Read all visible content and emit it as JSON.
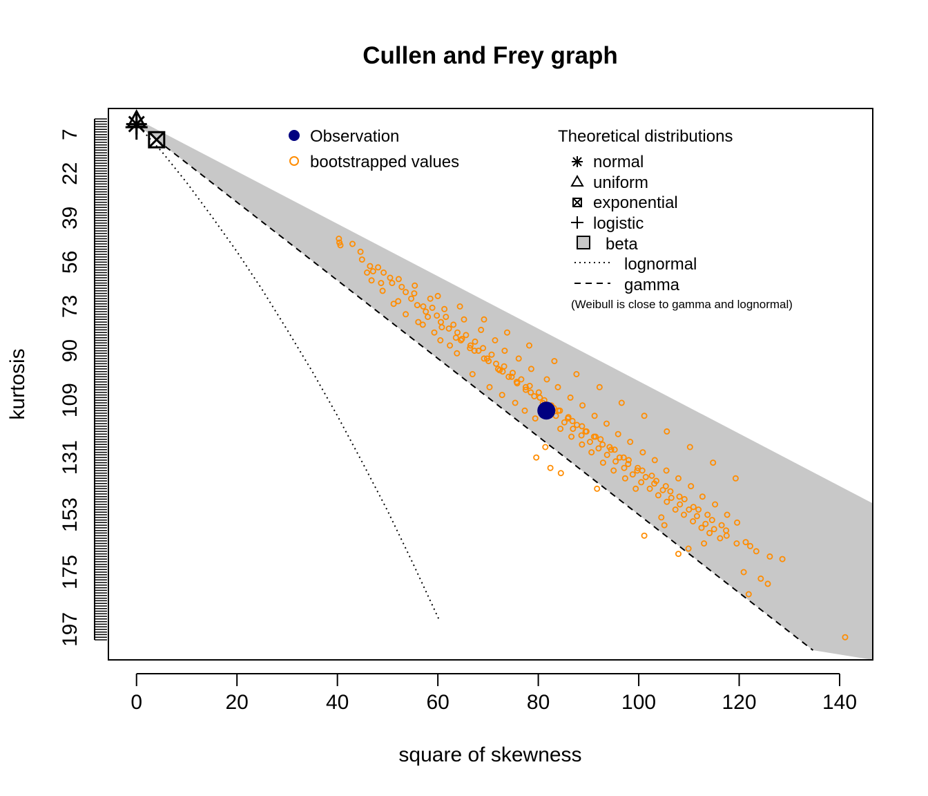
{
  "chart_data": {
    "type": "scatter",
    "title": "Cullen and Frey graph",
    "xlabel": "square of skewness",
    "ylabel": "kurtosis",
    "xlim": [
      -5.6,
      146.6
    ],
    "ylim": [
      208.7,
      -3
    ],
    "y_axis_inverted": true,
    "x_ticks": [
      0,
      20,
      40,
      60,
      80,
      100,
      120,
      140
    ],
    "y_ticks": [
      7,
      22,
      39,
      56,
      73,
      90,
      109,
      131,
      153,
      175,
      197
    ],
    "observation": {
      "x": 81.6,
      "y": 113
    },
    "theoretical_points": {
      "normal": {
        "x": 0,
        "y": 3
      },
      "uniform": {
        "x": 0,
        "y": 1.8
      },
      "exponential": {
        "x": 4,
        "y": 9
      },
      "logistic": {
        "x": 0,
        "y": 4.2
      }
    },
    "beta_region": {
      "upper_boundary": [
        [
          0,
          1
        ],
        [
          146.6,
          148.6
        ]
      ],
      "lower_boundary": [
        [
          0,
          3
        ],
        [
          134.7,
          205
        ]
      ]
    },
    "lognormal_line": [
      [
        0,
        3
      ],
      [
        5,
        13.5
      ],
      [
        10,
        25.5
      ],
      [
        15,
        38.5
      ],
      [
        20,
        52
      ],
      [
        25,
        66.5
      ],
      [
        30,
        82
      ],
      [
        35,
        98
      ],
      [
        40,
        115
      ],
      [
        45,
        133
      ],
      [
        50,
        151.5
      ],
      [
        55,
        171.5
      ],
      [
        60.3,
        193.5
      ]
    ],
    "gamma_line": [
      [
        4,
        9
      ],
      [
        134.7,
        205
      ]
    ],
    "bootstrap_samples": [
      [
        40.3,
        47
      ],
      [
        40.4,
        48.5
      ],
      [
        40.6,
        49.5
      ],
      [
        43.0,
        49
      ],
      [
        44.6,
        52
      ],
      [
        44.9,
        55
      ],
      [
        46.5,
        57.5
      ],
      [
        47.1,
        59.5
      ],
      [
        48.1,
        58
      ],
      [
        49.2,
        60
      ],
      [
        50.5,
        62
      ],
      [
        50.9,
        64
      ],
      [
        52.2,
        62.5
      ],
      [
        52.8,
        65.5
      ],
      [
        53.6,
        67.5
      ],
      [
        54.7,
        70
      ],
      [
        55.3,
        68
      ],
      [
        55.9,
        72.5
      ],
      [
        57.1,
        73
      ],
      [
        57.6,
        75
      ],
      [
        58.9,
        73.5
      ],
      [
        59.8,
        76.5
      ],
      [
        60.6,
        79
      ],
      [
        61.6,
        77
      ],
      [
        62.2,
        81.5
      ],
      [
        63.1,
        80
      ],
      [
        63.9,
        83
      ],
      [
        64.8,
        85.5
      ],
      [
        65.6,
        84
      ],
      [
        66.5,
        88
      ],
      [
        67.4,
        86.5
      ],
      [
        68.1,
        90
      ],
      [
        69.0,
        89
      ],
      [
        69.8,
        93
      ],
      [
        70.7,
        91.5
      ],
      [
        71.6,
        95
      ],
      [
        72.3,
        97.5
      ],
      [
        73.2,
        96
      ],
      [
        74.1,
        100
      ],
      [
        74.9,
        98.5
      ],
      [
        75.8,
        102.5
      ],
      [
        76.6,
        101
      ],
      [
        77.5,
        105
      ],
      [
        78.3,
        103.5
      ],
      [
        79.2,
        107.5
      ],
      [
        80.1,
        106
      ],
      [
        80.9,
        110
      ],
      [
        82.6,
        111
      ],
      [
        83.5,
        115
      ],
      [
        84.3,
        113
      ],
      [
        85.2,
        117.5
      ],
      [
        86.0,
        115.5
      ],
      [
        86.9,
        120
      ],
      [
        87.7,
        118.5
      ],
      [
        88.6,
        122.5
      ],
      [
        89.4,
        121
      ],
      [
        90.3,
        125
      ],
      [
        91.1,
        123
      ],
      [
        92.0,
        127.5
      ],
      [
        92.8,
        126
      ],
      [
        93.7,
        130
      ],
      [
        94.5,
        128
      ],
      [
        95.4,
        132.5
      ],
      [
        96.2,
        131
      ],
      [
        97.1,
        135
      ],
      [
        97.9,
        133.5
      ],
      [
        98.8,
        137.5
      ],
      [
        99.7,
        136
      ],
      [
        100.5,
        140.5
      ],
      [
        101.4,
        138.5
      ],
      [
        102.2,
        143
      ],
      [
        103.1,
        141
      ],
      [
        103.9,
        145.5
      ],
      [
        104.8,
        143.5
      ],
      [
        105.6,
        148
      ],
      [
        106.5,
        146.5
      ],
      [
        107.3,
        151
      ],
      [
        108.2,
        149
      ],
      [
        109.0,
        153
      ],
      [
        110.0,
        151
      ],
      [
        110.8,
        155.5
      ],
      [
        111.6,
        153.5
      ],
      [
        112.5,
        158
      ],
      [
        113.3,
        156.5
      ],
      [
        114.1,
        160
      ],
      [
        115.0,
        158.5
      ],
      [
        116.2,
        162
      ],
      [
        117.5,
        161
      ],
      [
        119.5,
        164
      ],
      [
        121.3,
        163.5
      ],
      [
        122.2,
        165
      ],
      [
        123.4,
        167
      ],
      [
        126.1,
        169
      ],
      [
        128.6,
        170
      ],
      [
        120.9,
        175
      ],
      [
        124.3,
        177.5
      ],
      [
        125.7,
        179.5
      ],
      [
        121.9,
        183.5
      ],
      [
        141.1,
        200
      ],
      [
        101.1,
        161
      ],
      [
        107.9,
        168
      ],
      [
        109.9,
        166
      ],
      [
        113.0,
        164
      ],
      [
        104.5,
        154
      ],
      [
        105.1,
        157
      ],
      [
        91.7,
        143
      ],
      [
        84.5,
        137
      ],
      [
        82.4,
        135
      ],
      [
        79.6,
        131
      ],
      [
        81.4,
        127
      ],
      [
        63.8,
        91
      ],
      [
        62.4,
        88
      ],
      [
        59.3,
        83
      ],
      [
        57.0,
        80
      ],
      [
        53.6,
        76
      ],
      [
        51.2,
        72
      ],
      [
        49.0,
        67
      ],
      [
        46.8,
        63
      ],
      [
        58.5,
        70
      ],
      [
        61.3,
        74
      ],
      [
        65.2,
        78
      ],
      [
        68.6,
        82
      ],
      [
        71.4,
        86
      ],
      [
        73.3,
        90
      ],
      [
        76.1,
        93
      ],
      [
        78.6,
        97
      ],
      [
        81.7,
        101
      ],
      [
        83.9,
        104
      ],
      [
        86.4,
        108
      ],
      [
        88.8,
        111
      ],
      [
        91.2,
        115
      ],
      [
        93.6,
        118
      ],
      [
        95.9,
        122
      ],
      [
        98.3,
        125
      ],
      [
        100.8,
        129
      ],
      [
        103.2,
        132
      ],
      [
        105.5,
        136
      ],
      [
        107.9,
        139
      ],
      [
        110.4,
        142
      ],
      [
        112.7,
        146
      ],
      [
        115.2,
        149
      ],
      [
        117.6,
        153
      ],
      [
        119.6,
        156
      ],
      [
        75.4,
        110
      ],
      [
        77.3,
        113
      ],
      [
        79.4,
        116
      ],
      [
        84.4,
        120
      ],
      [
        86.6,
        123
      ],
      [
        88.7,
        126
      ],
      [
        90.6,
        129
      ],
      [
        92.9,
        133
      ],
      [
        95.0,
        136
      ],
      [
        97.3,
        139
      ],
      [
        99.4,
        143
      ],
      [
        66.9,
        99
      ],
      [
        70.3,
        104
      ],
      [
        72.8,
        107
      ],
      [
        60.5,
        86
      ],
      [
        56.1,
        79
      ],
      [
        52.1,
        71
      ],
      [
        48.7,
        64
      ],
      [
        45.9,
        60
      ],
      [
        55.4,
        65
      ],
      [
        60.0,
        69
      ],
      [
        64.4,
        73
      ],
      [
        69.2,
        78
      ],
      [
        73.8,
        83
      ],
      [
        78.2,
        88
      ],
      [
        83.2,
        94
      ],
      [
        87.6,
        99
      ],
      [
        92.2,
        104
      ],
      [
        96.6,
        110
      ],
      [
        101.1,
        115
      ],
      [
        105.6,
        121
      ],
      [
        110.2,
        127
      ],
      [
        114.8,
        133
      ],
      [
        119.3,
        139
      ],
      [
        64.6,
        86
      ],
      [
        67.3,
        90
      ],
      [
        70.1,
        94
      ],
      [
        72.9,
        98
      ],
      [
        75.7,
        102
      ],
      [
        78.5,
        106
      ],
      [
        81.2,
        109
      ],
      [
        84.0,
        113
      ],
      [
        86.8,
        117
      ],
      [
        89.6,
        121
      ],
      [
        92.4,
        124
      ],
      [
        95.2,
        128
      ],
      [
        98.0,
        132
      ],
      [
        100.7,
        136
      ],
      [
        103.5,
        140
      ],
      [
        106.3,
        144
      ],
      [
        109.1,
        147
      ],
      [
        111.9,
        151
      ],
      [
        114.6,
        155
      ],
      [
        117.4,
        159
      ],
      [
        58.0,
        77
      ],
      [
        60.8,
        81
      ],
      [
        63.6,
        85
      ],
      [
        66.4,
        89
      ],
      [
        69.2,
        93
      ],
      [
        72.0,
        97
      ],
      [
        74.7,
        100
      ],
      [
        77.5,
        104
      ],
      [
        80.3,
        108
      ],
      [
        83.1,
        112
      ],
      [
        85.9,
        116
      ],
      [
        88.7,
        119
      ],
      [
        91.4,
        123
      ],
      [
        94.2,
        127
      ],
      [
        97.0,
        131
      ],
      [
        99.8,
        135
      ],
      [
        102.6,
        138
      ],
      [
        105.4,
        142
      ],
      [
        108.1,
        146
      ],
      [
        110.9,
        150
      ],
      [
        113.7,
        153
      ],
      [
        116.5,
        157
      ]
    ]
  },
  "legend_left": [
    {
      "symbol": "filled-circle",
      "color": "#000080",
      "label": "Observation"
    },
    {
      "symbol": "open-circle",
      "color": "#FF8C00",
      "label": "bootstrapped values"
    }
  ],
  "legend_right": {
    "title": "Theoretical distributions",
    "items": [
      {
        "symbol": "asterisk",
        "label": "normal"
      },
      {
        "symbol": "triangle",
        "label": "uniform"
      },
      {
        "symbol": "boxed-x",
        "label": "exponential"
      },
      {
        "symbol": "plus",
        "label": "logistic"
      },
      {
        "symbol": "gray-box",
        "label": "beta"
      },
      {
        "symbol": "dotted-line",
        "label": "lognormal"
      },
      {
        "symbol": "dashed-line",
        "label": "gamma"
      }
    ],
    "note": "(Weibull is close to gamma and lognormal)"
  },
  "colors": {
    "observation": "#000080",
    "bootstrap": "#FF8C00",
    "beta_region": "#C8C8C8",
    "axis": "#000000"
  }
}
